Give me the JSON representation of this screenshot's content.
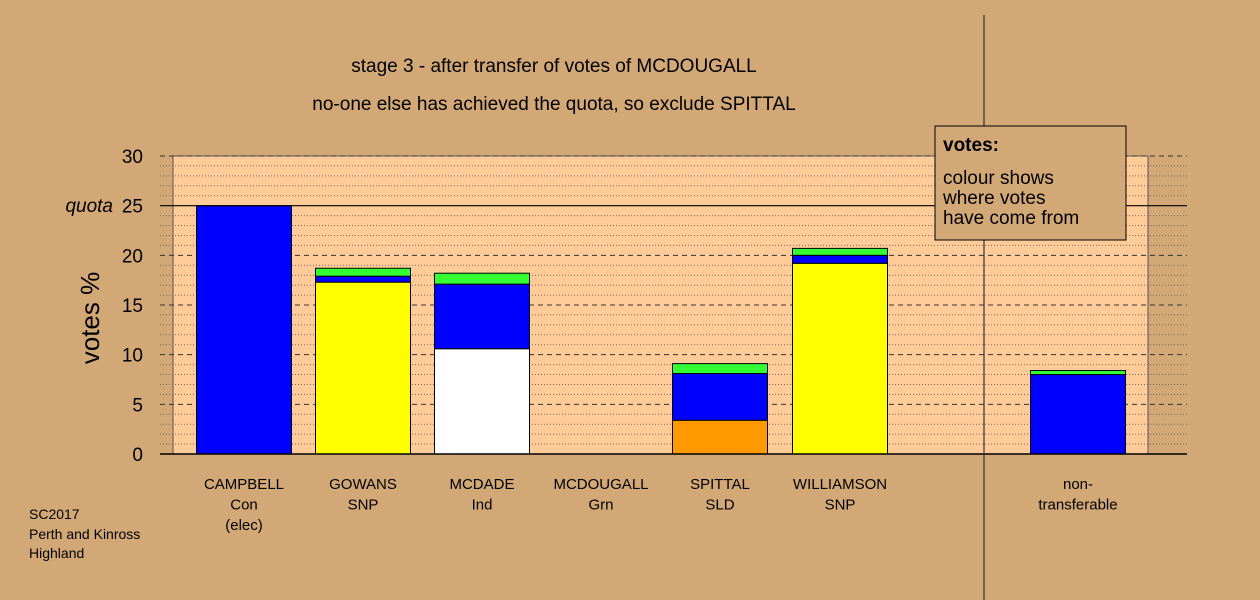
{
  "chart_data": {
    "type": "bar",
    "stacked": true,
    "title": "stage 3 - after transfer of votes of MCDOUGALL",
    "subtitle": "no-one else has achieved the quota, so exclude SPITTAL",
    "ylabel": "votes %",
    "ylim": [
      0,
      30
    ],
    "yticks": [
      0,
      5,
      10,
      15,
      20,
      25,
      30
    ],
    "quota": 25,
    "quota_label": "quota",
    "grid": true,
    "colors": {
      "background": "#d2a877",
      "plot": "#ffcc99",
      "blue": "#0000ff",
      "yellow": "#ffff00",
      "green": "#33ff33",
      "white": "#ffffff",
      "orange": "#ff9900"
    },
    "categories": [
      [
        "CAMPBELL",
        "Con",
        "(elec)"
      ],
      [
        "GOWANS",
        "SNP"
      ],
      [
        "MCDADE",
        "Ind"
      ],
      [
        "MCDOUGALL",
        "Grn"
      ],
      [
        "SPITTAL",
        "SLD"
      ],
      [
        "WILLIAMSON",
        "SNP"
      ],
      [
        "non-",
        "transferable"
      ]
    ],
    "bars": [
      [
        {
          "color": "blue",
          "value": 25.0
        }
      ],
      [
        {
          "color": "yellow",
          "value": 17.3
        },
        {
          "color": "blue",
          "value": 0.6
        },
        {
          "color": "green",
          "value": 0.8
        }
      ],
      [
        {
          "color": "white",
          "value": 10.6
        },
        {
          "color": "blue",
          "value": 6.5
        },
        {
          "color": "green",
          "value": 1.1
        }
      ],
      [],
      [
        {
          "color": "orange",
          "value": 3.4
        },
        {
          "color": "blue",
          "value": 4.7
        },
        {
          "color": "green",
          "value": 1.0
        }
      ],
      [
        {
          "color": "yellow",
          "value": 19.2
        },
        {
          "color": "blue",
          "value": 0.8
        },
        {
          "color": "green",
          "value": 0.7
        }
      ],
      [
        {
          "color": "blue",
          "value": 8.0
        },
        {
          "color": "green",
          "value": 0.4
        }
      ]
    ],
    "legend": {
      "heading": "votes:",
      "lines": [
        "colour shows",
        "where votes",
        "have come from"
      ],
      "placement": "top-right"
    }
  },
  "footnote": [
    "SC2017",
    "Perth and Kinross",
    "Highland"
  ]
}
